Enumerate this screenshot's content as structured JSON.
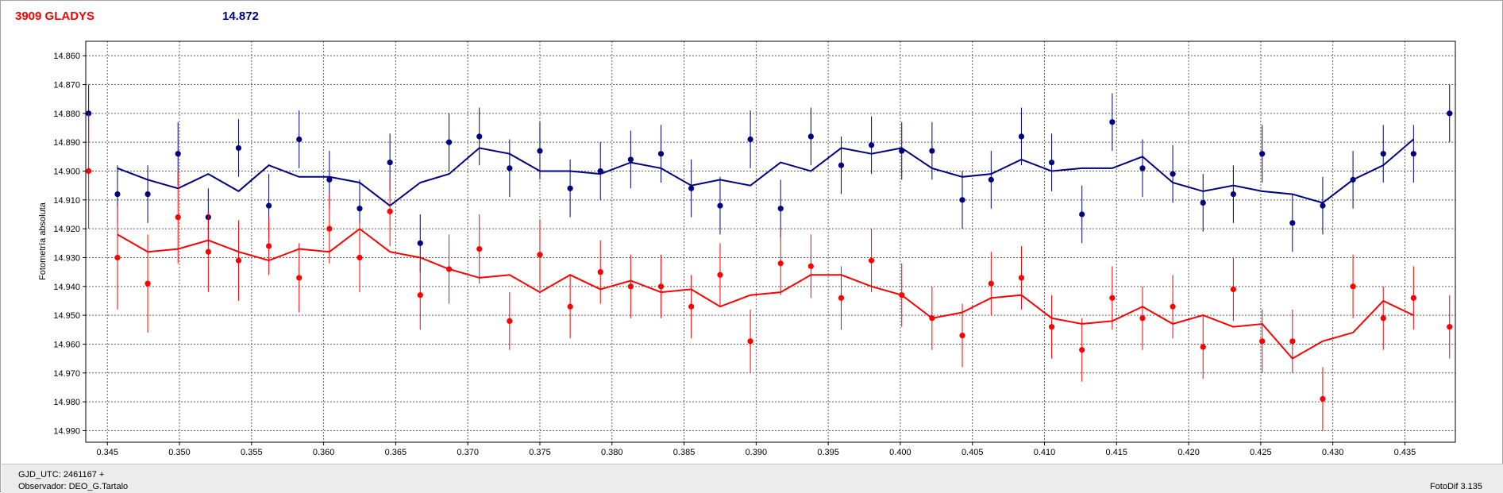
{
  "header": {
    "object_name": "3909 GLADYS",
    "magnitude": "14.872",
    "name_color": "#ff0000",
    "mag_color": "#000080"
  },
  "footer": {
    "gjd": "GJD_UTC: 2461167 +",
    "observer": "Observador: DEO_G.Tartalo",
    "software": "FotoDif 3.135"
  },
  "chart_data": {
    "type": "scatter",
    "title": "",
    "xlabel": "",
    "ylabel": "Fotometría absoluta",
    "xlim": [
      0.3435,
      0.4385
    ],
    "ylim": [
      14.855,
      14.994
    ],
    "y_inverted": true,
    "grid": true,
    "x_ticks": [
      "0.345",
      "0.350",
      "0.355",
      "0.360",
      "0.365",
      "0.370",
      "0.375",
      "0.380",
      "0.385",
      "0.390",
      "0.395",
      "0.400",
      "0.405",
      "0.410",
      "0.415",
      "0.420",
      "0.425",
      "0.430",
      "0.435"
    ],
    "y_ticks": [
      "14.860",
      "14.870",
      "14.880",
      "14.890",
      "14.900",
      "14.910",
      "14.920",
      "14.930",
      "14.940",
      "14.950",
      "14.960",
      "14.970",
      "14.980",
      "14.990"
    ],
    "series": [
      {
        "color": "#000080",
        "points": [
          {
            "x": 0.3437,
            "y": 14.88,
            "err": 0.01
          },
          {
            "x": 0.3457,
            "y": 14.908,
            "err": 0.01
          },
          {
            "x": 0.3478,
            "y": 14.908,
            "err": 0.01
          },
          {
            "x": 0.3499,
            "y": 14.894,
            "err": 0.011
          },
          {
            "x": 0.352,
            "y": 14.916,
            "err": 0.01
          },
          {
            "x": 0.3541,
            "y": 14.892,
            "err": 0.01
          },
          {
            "x": 0.3562,
            "y": 14.912,
            "err": 0.011
          },
          {
            "x": 0.3583,
            "y": 14.889,
            "err": 0.01
          },
          {
            "x": 0.3604,
            "y": 14.903,
            "err": 0.01
          },
          {
            "x": 0.3625,
            "y": 14.913,
            "err": 0.01
          },
          {
            "x": 0.3646,
            "y": 14.897,
            "err": 0.01
          },
          {
            "x": 0.3667,
            "y": 14.925,
            "err": 0.01
          },
          {
            "x": 0.3687,
            "y": 14.89,
            "err": 0.01
          },
          {
            "x": 0.3708,
            "y": 14.888,
            "err": 0.01
          },
          {
            "x": 0.3729,
            "y": 14.899,
            "err": 0.01
          },
          {
            "x": 0.375,
            "y": 14.893,
            "err": 0.01
          },
          {
            "x": 0.3771,
            "y": 14.906,
            "err": 0.01
          },
          {
            "x": 0.3792,
            "y": 14.9,
            "err": 0.01
          },
          {
            "x": 0.3813,
            "y": 14.896,
            "err": 0.01
          },
          {
            "x": 0.3834,
            "y": 14.894,
            "err": 0.01
          },
          {
            "x": 0.3855,
            "y": 14.906,
            "err": 0.01
          },
          {
            "x": 0.3875,
            "y": 14.912,
            "err": 0.01
          },
          {
            "x": 0.3896,
            "y": 14.889,
            "err": 0.01
          },
          {
            "x": 0.3917,
            "y": 14.913,
            "err": 0.01
          },
          {
            "x": 0.3938,
            "y": 14.888,
            "err": 0.01
          },
          {
            "x": 0.3959,
            "y": 14.898,
            "err": 0.01
          },
          {
            "x": 0.398,
            "y": 14.891,
            "err": 0.01
          },
          {
            "x": 0.4001,
            "y": 14.893,
            "err": 0.01
          },
          {
            "x": 0.4022,
            "y": 14.893,
            "err": 0.01
          },
          {
            "x": 0.4043,
            "y": 14.91,
            "err": 0.01
          },
          {
            "x": 0.4063,
            "y": 14.903,
            "err": 0.01
          },
          {
            "x": 0.4084,
            "y": 14.888,
            "err": 0.01
          },
          {
            "x": 0.4105,
            "y": 14.897,
            "err": 0.01
          },
          {
            "x": 0.4126,
            "y": 14.915,
            "err": 0.01
          },
          {
            "x": 0.4147,
            "y": 14.883,
            "err": 0.01
          },
          {
            "x": 0.4168,
            "y": 14.899,
            "err": 0.01
          },
          {
            "x": 0.4189,
            "y": 14.901,
            "err": 0.01
          },
          {
            "x": 0.421,
            "y": 14.911,
            "err": 0.01
          },
          {
            "x": 0.4231,
            "y": 14.908,
            "err": 0.01
          },
          {
            "x": 0.4251,
            "y": 14.894,
            "err": 0.01
          },
          {
            "x": 0.4272,
            "y": 14.918,
            "err": 0.01
          },
          {
            "x": 0.4293,
            "y": 14.912,
            "err": 0.01
          },
          {
            "x": 0.4314,
            "y": 14.903,
            "err": 0.01
          },
          {
            "x": 0.4335,
            "y": 14.894,
            "err": 0.01
          },
          {
            "x": 0.4356,
            "y": 14.894,
            "err": 0.01
          },
          {
            "x": 0.4381,
            "y": 14.88,
            "err": 0.01
          }
        ],
        "fit": [
          [
            0.3457,
            14.899
          ],
          [
            0.3478,
            14.903
          ],
          [
            0.3499,
            14.906
          ],
          [
            0.352,
            14.901
          ],
          [
            0.3541,
            14.907
          ],
          [
            0.3562,
            14.898
          ],
          [
            0.3583,
            14.902
          ],
          [
            0.3604,
            14.902
          ],
          [
            0.3625,
            14.904
          ],
          [
            0.3646,
            14.912
          ],
          [
            0.3667,
            14.904
          ],
          [
            0.3687,
            14.901
          ],
          [
            0.3708,
            14.892
          ],
          [
            0.3729,
            14.894
          ],
          [
            0.375,
            14.9
          ],
          [
            0.3771,
            14.9
          ],
          [
            0.3792,
            14.901
          ],
          [
            0.3813,
            14.897
          ],
          [
            0.3834,
            14.899
          ],
          [
            0.3855,
            14.905
          ],
          [
            0.3875,
            14.903
          ],
          [
            0.3896,
            14.905
          ],
          [
            0.3917,
            14.897
          ],
          [
            0.3938,
            14.9
          ],
          [
            0.3959,
            14.892
          ],
          [
            0.398,
            14.894
          ],
          [
            0.4001,
            14.892
          ],
          [
            0.4022,
            14.899
          ],
          [
            0.4043,
            14.902
          ],
          [
            0.4063,
            14.901
          ],
          [
            0.4084,
            14.896
          ],
          [
            0.4105,
            14.9
          ],
          [
            0.4126,
            14.899
          ],
          [
            0.4147,
            14.899
          ],
          [
            0.4168,
            14.895
          ],
          [
            0.4189,
            14.904
          ],
          [
            0.421,
            14.907
          ],
          [
            0.4231,
            14.905
          ],
          [
            0.4251,
            14.907
          ],
          [
            0.4272,
            14.908
          ],
          [
            0.4293,
            14.911
          ],
          [
            0.4314,
            14.903
          ],
          [
            0.4335,
            14.898
          ],
          [
            0.4356,
            14.889
          ]
        ]
      },
      {
        "color": "#ff0000",
        "points": [
          {
            "x": 0.3437,
            "y": 14.9,
            "err": 0.02
          },
          {
            "x": 0.3457,
            "y": 14.93,
            "err": 0.018
          },
          {
            "x": 0.3478,
            "y": 14.939,
            "err": 0.017
          },
          {
            "x": 0.3499,
            "y": 14.916,
            "err": 0.016
          },
          {
            "x": 0.352,
            "y": 14.928,
            "err": 0.014
          },
          {
            "x": 0.3541,
            "y": 14.931,
            "err": 0.014
          },
          {
            "x": 0.3562,
            "y": 14.926,
            "err": 0.01
          },
          {
            "x": 0.3583,
            "y": 14.937,
            "err": 0.012
          },
          {
            "x": 0.3604,
            "y": 14.92,
            "err": 0.012
          },
          {
            "x": 0.3625,
            "y": 14.93,
            "err": 0.012
          },
          {
            "x": 0.3646,
            "y": 14.914,
            "err": 0.012
          },
          {
            "x": 0.3667,
            "y": 14.943,
            "err": 0.012
          },
          {
            "x": 0.3687,
            "y": 14.934,
            "err": 0.012
          },
          {
            "x": 0.3708,
            "y": 14.927,
            "err": 0.012
          },
          {
            "x": 0.3729,
            "y": 14.952,
            "err": 0.01
          },
          {
            "x": 0.375,
            "y": 14.929,
            "err": 0.012
          },
          {
            "x": 0.3771,
            "y": 14.947,
            "err": 0.011
          },
          {
            "x": 0.3792,
            "y": 14.935,
            "err": 0.011
          },
          {
            "x": 0.3813,
            "y": 14.94,
            "err": 0.011
          },
          {
            "x": 0.3834,
            "y": 14.94,
            "err": 0.011
          },
          {
            "x": 0.3855,
            "y": 14.947,
            "err": 0.011
          },
          {
            "x": 0.3875,
            "y": 14.936,
            "err": 0.011
          },
          {
            "x": 0.3896,
            "y": 14.959,
            "err": 0.011
          },
          {
            "x": 0.3917,
            "y": 14.932,
            "err": 0.011
          },
          {
            "x": 0.3938,
            "y": 14.933,
            "err": 0.011
          },
          {
            "x": 0.3959,
            "y": 14.944,
            "err": 0.011
          },
          {
            "x": 0.398,
            "y": 14.931,
            "err": 0.011
          },
          {
            "x": 0.4001,
            "y": 14.943,
            "err": 0.011
          },
          {
            "x": 0.4022,
            "y": 14.951,
            "err": 0.011
          },
          {
            "x": 0.4043,
            "y": 14.957,
            "err": 0.011
          },
          {
            "x": 0.4063,
            "y": 14.939,
            "err": 0.011
          },
          {
            "x": 0.4084,
            "y": 14.937,
            "err": 0.011
          },
          {
            "x": 0.4105,
            "y": 14.954,
            "err": 0.011
          },
          {
            "x": 0.4126,
            "y": 14.962,
            "err": 0.011
          },
          {
            "x": 0.4147,
            "y": 14.944,
            "err": 0.011
          },
          {
            "x": 0.4168,
            "y": 14.951,
            "err": 0.011
          },
          {
            "x": 0.4189,
            "y": 14.947,
            "err": 0.011
          },
          {
            "x": 0.421,
            "y": 14.961,
            "err": 0.011
          },
          {
            "x": 0.4231,
            "y": 14.941,
            "err": 0.011
          },
          {
            "x": 0.4251,
            "y": 14.959,
            "err": 0.011
          },
          {
            "x": 0.4272,
            "y": 14.959,
            "err": 0.011
          },
          {
            "x": 0.4293,
            "y": 14.979,
            "err": 0.011
          },
          {
            "x": 0.4314,
            "y": 14.94,
            "err": 0.011
          },
          {
            "x": 0.4335,
            "y": 14.951,
            "err": 0.011
          },
          {
            "x": 0.4356,
            "y": 14.944,
            "err": 0.011
          },
          {
            "x": 0.4381,
            "y": 14.954,
            "err": 0.011
          }
        ],
        "fit": [
          [
            0.3457,
            14.922
          ],
          [
            0.3478,
            14.928
          ],
          [
            0.3499,
            14.927
          ],
          [
            0.352,
            14.924
          ],
          [
            0.3541,
            14.928
          ],
          [
            0.3562,
            14.931
          ],
          [
            0.3583,
            14.927
          ],
          [
            0.3604,
            14.928
          ],
          [
            0.3625,
            14.92
          ],
          [
            0.3646,
            14.928
          ],
          [
            0.3667,
            14.93
          ],
          [
            0.3687,
            14.934
          ],
          [
            0.3708,
            14.937
          ],
          [
            0.3729,
            14.936
          ],
          [
            0.375,
            14.942
          ],
          [
            0.3771,
            14.936
          ],
          [
            0.3792,
            14.941
          ],
          [
            0.3813,
            14.938
          ],
          [
            0.3834,
            14.942
          ],
          [
            0.3855,
            14.941
          ],
          [
            0.3875,
            14.947
          ],
          [
            0.3896,
            14.943
          ],
          [
            0.3917,
            14.942
          ],
          [
            0.3938,
            14.936
          ],
          [
            0.3959,
            14.936
          ],
          [
            0.398,
            14.94
          ],
          [
            0.4001,
            14.943
          ],
          [
            0.4022,
            14.951
          ],
          [
            0.4043,
            14.949
          ],
          [
            0.4063,
            14.944
          ],
          [
            0.4084,
            14.943
          ],
          [
            0.4105,
            14.951
          ],
          [
            0.4126,
            14.953
          ],
          [
            0.4147,
            14.952
          ],
          [
            0.4168,
            14.947
          ],
          [
            0.4189,
            14.953
          ],
          [
            0.421,
            14.95
          ],
          [
            0.4231,
            14.954
          ],
          [
            0.4251,
            14.953
          ],
          [
            0.4272,
            14.965
          ],
          [
            0.4293,
            14.959
          ],
          [
            0.4314,
            14.956
          ],
          [
            0.4335,
            14.945
          ],
          [
            0.4356,
            14.95
          ]
        ]
      }
    ]
  }
}
